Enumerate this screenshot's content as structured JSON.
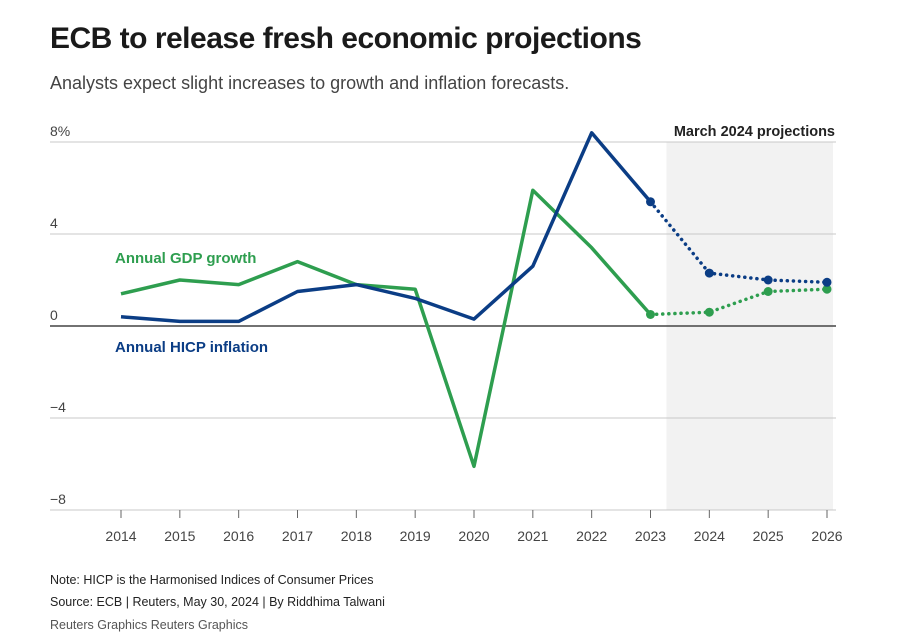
{
  "title": "ECB to release fresh economic projections",
  "subtitle": "Analysts expect slight increases to growth and inflation forecasts.",
  "note": "Note: HICP is the Harmonised Indices of Consumer Prices",
  "source": "Source: ECB | Reuters, May 30, 2024 | By Riddhima Talwani",
  "brand": "Reuters Graphics Reuters Graphics",
  "chart_data": {
    "type": "line",
    "title": "ECB to release fresh economic projections",
    "x": [
      2014,
      2015,
      2016,
      2017,
      2018,
      2019,
      2020,
      2021,
      2022,
      2023,
      2024,
      2025,
      2026
    ],
    "x_tick_labels": [
      "2014",
      "2015",
      "2016",
      "2017",
      "2018",
      "2019",
      "2020",
      "2021",
      "2022",
      "2023",
      "2024",
      "2025",
      "2026"
    ],
    "y_tick_labels": [
      "8%",
      "4",
      "0",
      "−4",
      "−8"
    ],
    "y_ticks": [
      8,
      4,
      0,
      -4,
      -8
    ],
    "ylim": [
      -8,
      8
    ],
    "grid": true,
    "projection_label": "March 2024 projections",
    "projection_start": 2023,
    "projection_shade_color": "#f2f2f2",
    "series": [
      {
        "name": "Annual GDP growth",
        "color": "#2e9e4f",
        "values": [
          1.4,
          2.0,
          1.8,
          2.8,
          1.8,
          1.6,
          -6.1,
          5.9,
          3.4,
          0.5,
          0.6,
          1.5,
          1.6
        ]
      },
      {
        "name": "Annual HICP inflation",
        "color": "#0b3d85",
        "values": [
          0.4,
          0.2,
          0.2,
          1.5,
          1.8,
          1.2,
          0.3,
          2.6,
          8.4,
          5.4,
          2.3,
          2.0,
          1.9
        ]
      }
    ]
  }
}
